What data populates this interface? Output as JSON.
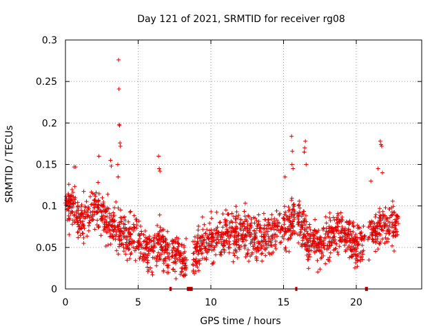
{
  "chart_data": {
    "type": "scatter",
    "title": "Day 121 of 2021, SRMTID for receiver rg08",
    "xlabel": "GPS time / hours",
    "ylabel": "SRMTID / TECUs",
    "xlim": [
      0,
      24.5
    ],
    "ylim": [
      0,
      0.3
    ],
    "xticks": [
      0,
      5,
      10,
      15,
      20
    ],
    "yticks": [
      0,
      0.05,
      0.1,
      0.15,
      0.2,
      0.25,
      0.3
    ],
    "xtick_labels": [
      "0",
      "5",
      "10",
      "15",
      "20"
    ],
    "ytick_labels": [
      "0",
      "0.05",
      "0.1",
      "0.15",
      "0.2",
      "0.25",
      "0.3"
    ],
    "grid": true,
    "series_color": "#e00000",
    "marker": "+",
    "zero_segments": [
      {
        "x0": 7.15,
        "x1": 7.3
      },
      {
        "x0": 8.35,
        "x1": 8.75
      },
      {
        "x0": 15.8,
        "x1": 15.95
      },
      {
        "x0": 20.6,
        "x1": 20.8
      }
    ],
    "profile": [
      {
        "x": 0.0,
        "y": 0.105
      },
      {
        "x": 0.5,
        "y": 0.1
      },
      {
        "x": 1.0,
        "y": 0.08
      },
      {
        "x": 1.5,
        "y": 0.09
      },
      {
        "x": 2.0,
        "y": 0.1
      },
      {
        "x": 2.5,
        "y": 0.095
      },
      {
        "x": 3.0,
        "y": 0.075
      },
      {
        "x": 3.5,
        "y": 0.07
      },
      {
        "x": 4.0,
        "y": 0.065
      },
      {
        "x": 4.5,
        "y": 0.06
      },
      {
        "x": 5.0,
        "y": 0.055
      },
      {
        "x": 5.5,
        "y": 0.045
      },
      {
        "x": 6.0,
        "y": 0.045
      },
      {
        "x": 6.5,
        "y": 0.06
      },
      {
        "x": 7.0,
        "y": 0.045
      },
      {
        "x": 7.5,
        "y": 0.05
      },
      {
        "x": 8.0,
        "y": 0.035
      },
      {
        "x": 8.5,
        "y": 0.03
      },
      {
        "x": 9.0,
        "y": 0.045
      },
      {
        "x": 9.5,
        "y": 0.055
      },
      {
        "x": 10.0,
        "y": 0.06
      },
      {
        "x": 10.5,
        "y": 0.055
      },
      {
        "x": 11.0,
        "y": 0.065
      },
      {
        "x": 11.5,
        "y": 0.07
      },
      {
        "x": 12.0,
        "y": 0.065
      },
      {
        "x": 12.5,
        "y": 0.07
      },
      {
        "x": 13.0,
        "y": 0.06
      },
      {
        "x": 13.5,
        "y": 0.06
      },
      {
        "x": 14.0,
        "y": 0.065
      },
      {
        "x": 14.5,
        "y": 0.07
      },
      {
        "x": 15.0,
        "y": 0.075
      },
      {
        "x": 15.5,
        "y": 0.08
      },
      {
        "x": 16.0,
        "y": 0.085
      },
      {
        "x": 16.5,
        "y": 0.065
      },
      {
        "x": 17.0,
        "y": 0.06
      },
      {
        "x": 17.5,
        "y": 0.055
      },
      {
        "x": 18.0,
        "y": 0.06
      },
      {
        "x": 18.5,
        "y": 0.065
      },
      {
        "x": 19.0,
        "y": 0.07
      },
      {
        "x": 19.5,
        "y": 0.065
      },
      {
        "x": 20.0,
        "y": 0.05
      },
      {
        "x": 20.5,
        "y": 0.06
      },
      {
        "x": 21.0,
        "y": 0.065
      },
      {
        "x": 21.5,
        "y": 0.075
      },
      {
        "x": 22.0,
        "y": 0.08
      },
      {
        "x": 22.5,
        "y": 0.075
      },
      {
        "x": 22.8,
        "y": 0.08
      }
    ],
    "spikes": [
      {
        "x": 3.65,
        "y": 0.276
      },
      {
        "x": 3.68,
        "y": 0.241
      },
      {
        "x": 3.7,
        "y": 0.198
      },
      {
        "x": 3.72,
        "y": 0.197
      },
      {
        "x": 3.75,
        "y": 0.176
      },
      {
        "x": 3.78,
        "y": 0.172
      },
      {
        "x": 3.6,
        "y": 0.15
      },
      {
        "x": 3.62,
        "y": 0.135
      },
      {
        "x": 3.1,
        "y": 0.155
      },
      {
        "x": 3.15,
        "y": 0.148
      },
      {
        "x": 2.3,
        "y": 0.16
      },
      {
        "x": 0.6,
        "y": 0.147
      },
      {
        "x": 0.7,
        "y": 0.147
      },
      {
        "x": 6.4,
        "y": 0.16
      },
      {
        "x": 6.45,
        "y": 0.145
      },
      {
        "x": 6.5,
        "y": 0.142
      },
      {
        "x": 15.55,
        "y": 0.184
      },
      {
        "x": 15.6,
        "y": 0.166
      },
      {
        "x": 15.58,
        "y": 0.15
      },
      {
        "x": 15.65,
        "y": 0.145
      },
      {
        "x": 16.5,
        "y": 0.178
      },
      {
        "x": 16.45,
        "y": 0.17
      },
      {
        "x": 16.42,
        "y": 0.165
      },
      {
        "x": 16.55,
        "y": 0.15
      },
      {
        "x": 15.1,
        "y": 0.135
      },
      {
        "x": 21.65,
        "y": 0.178
      },
      {
        "x": 21.7,
        "y": 0.174
      },
      {
        "x": 21.75,
        "y": 0.172
      },
      {
        "x": 21.5,
        "y": 0.145
      },
      {
        "x": 21.8,
        "y": 0.14
      },
      {
        "x": 21.0,
        "y": 0.13
      }
    ],
    "n_points": 1900,
    "scatter_spread": 0.018,
    "x_range": [
      0,
      22.9
    ]
  }
}
